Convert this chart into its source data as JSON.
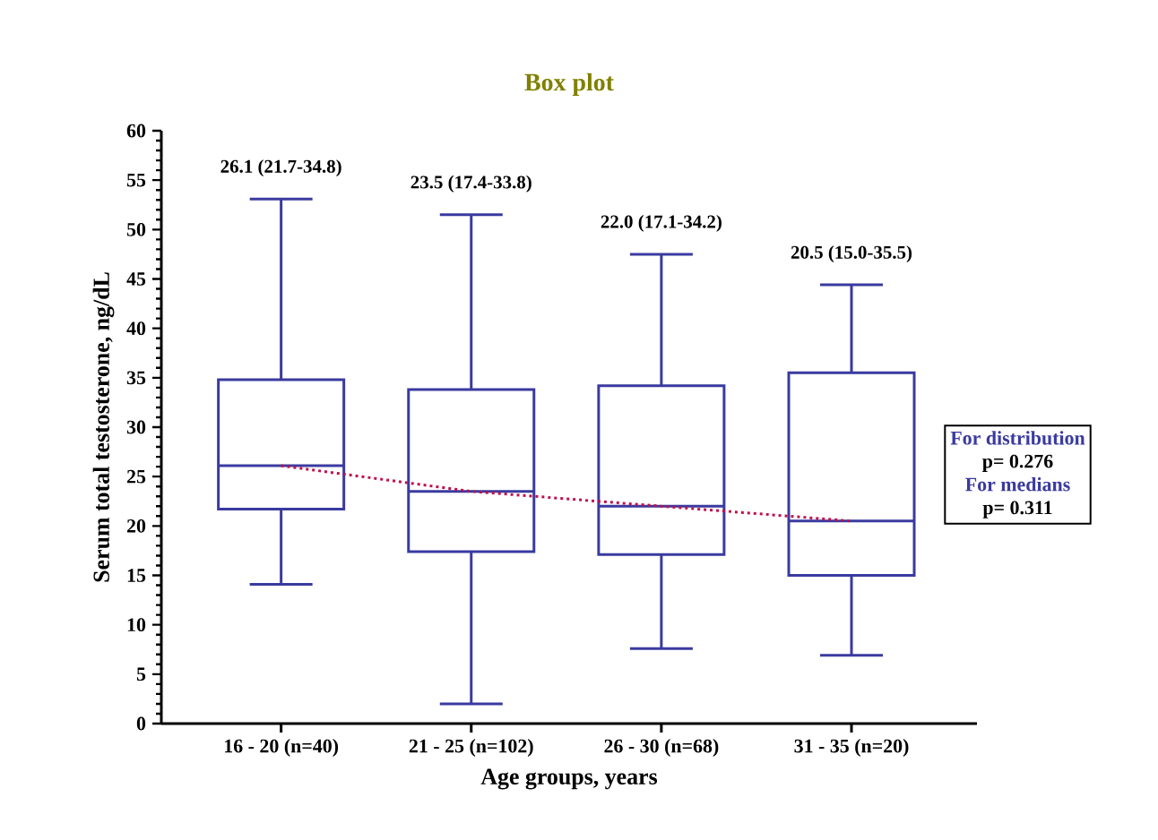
{
  "chart_data": {
    "type": "box",
    "title": "Box plot",
    "xlabel": "Age groups, years",
    "ylabel": "Serum total testosterone, ng/dL",
    "categories": [
      "16 - 20 (n=40)",
      "21 - 25 (n=102)",
      "26 - 30 (n=68)",
      "31 - 35 (n=20)"
    ],
    "ylim": [
      0,
      60
    ],
    "yticks": [
      0,
      5,
      10,
      15,
      20,
      25,
      30,
      35,
      40,
      45,
      50,
      55,
      60
    ],
    "series": [
      {
        "color": "#3a3aa0",
        "boxes": [
          {
            "low": 14.1,
            "q1": 21.7,
            "median": 26.1,
            "q3": 34.8,
            "high": 53.1
          },
          {
            "low": 2.0,
            "q1": 17.4,
            "median": 23.5,
            "q3": 33.8,
            "high": 51.5
          },
          {
            "low": 7.6,
            "q1": 17.1,
            "median": 22.0,
            "q3": 34.2,
            "high": 47.5
          },
          {
            "low": 6.9,
            "q1": 15.0,
            "median": 20.5,
            "q3": 35.5,
            "high": 44.4
          }
        ]
      },
      {
        "type": "line",
        "color": "#c0104a",
        "line_style": "dotted",
        "marker": "none",
        "values": [
          26.1,
          23.5,
          22.0,
          20.5
        ]
      }
    ],
    "annotations": [
      {
        "text": "26.1 (21.7-34.8)",
        "x": "16 - 20 (n=40)",
        "y": 53.1
      },
      {
        "text": "23.5 (17.4-33.8)",
        "x": "21 - 25 (n=102)",
        "y": 51.5
      },
      {
        "text": "22.0 (17.1-34.2)",
        "x": "26 - 30 (n=68)",
        "y": 47.5
      },
      {
        "text": "20.5 (15.0-35.5)",
        "x": "31 - 35 (n=20)",
        "y": 44.4
      },
      "For distribution",
      "p= 0.276",
      "For medians",
      "p= 0.311"
    ]
  }
}
